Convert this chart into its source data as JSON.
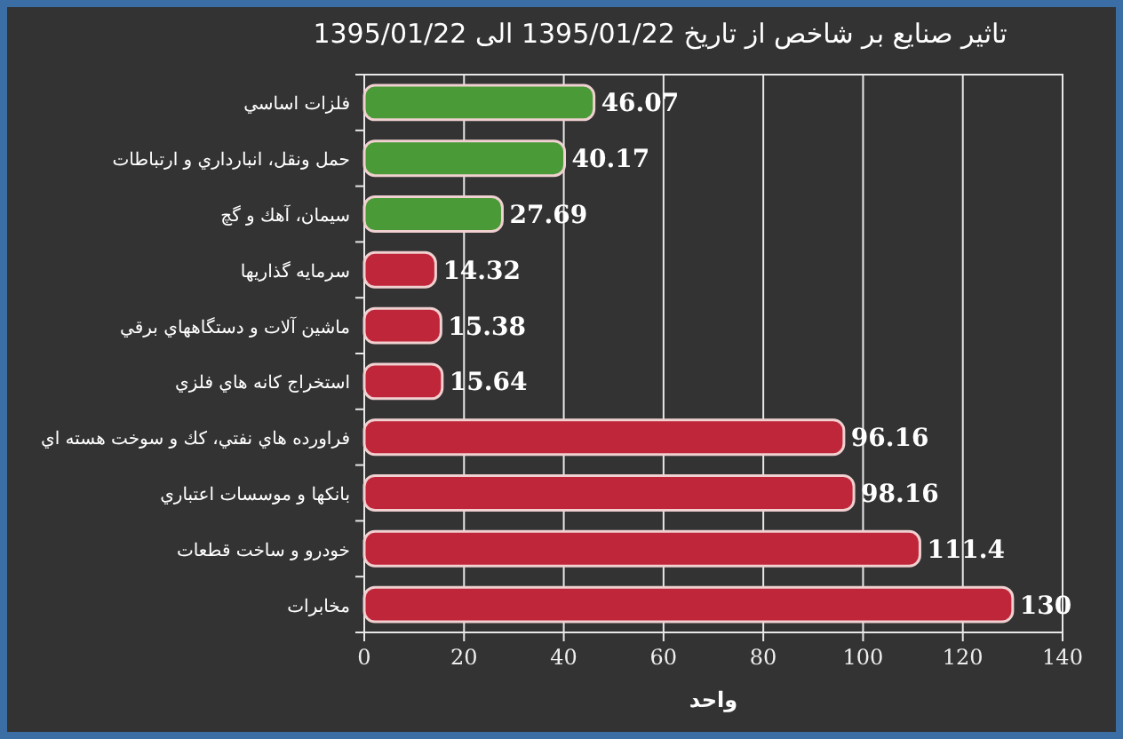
{
  "chart_data": {
    "type": "bar",
    "orientation": "horizontal",
    "title": "تاثير صنايع بر شاخص از تاريخ 1395/01/22 الی 1395/01/22",
    "xlabel": "واحد",
    "categories": [
      "فلزات اساسي",
      "حمل ونقل، انبارداري و ارتباطات",
      "سيمان، آهك و گچ",
      "سرمايه گذاريها",
      "ماشين آلات و دستگاههاي برقي",
      "استخراج كانه هاي فلزي",
      "فراورده هاي نفتي، كك و سوخت هسته اي",
      "بانكها و موسسات اعتباري",
      "خودرو و ساخت قطعات",
      "مخابرات"
    ],
    "values": [
      46.07,
      40.17,
      27.69,
      14.32,
      15.38,
      15.64,
      96.16,
      98.16,
      111.4,
      130
    ],
    "colors": [
      "#4a9b38",
      "#4a9b38",
      "#4a9b38",
      "#c0263a",
      "#c0263a",
      "#c0263a",
      "#c0263a",
      "#c0263a",
      "#c0263a",
      "#c0263a"
    ],
    "xlim": [
      0,
      140
    ],
    "xticks": [
      0,
      20,
      40,
      60,
      80,
      100,
      120,
      140
    ],
    "grid": "x",
    "data_labels": true
  }
}
